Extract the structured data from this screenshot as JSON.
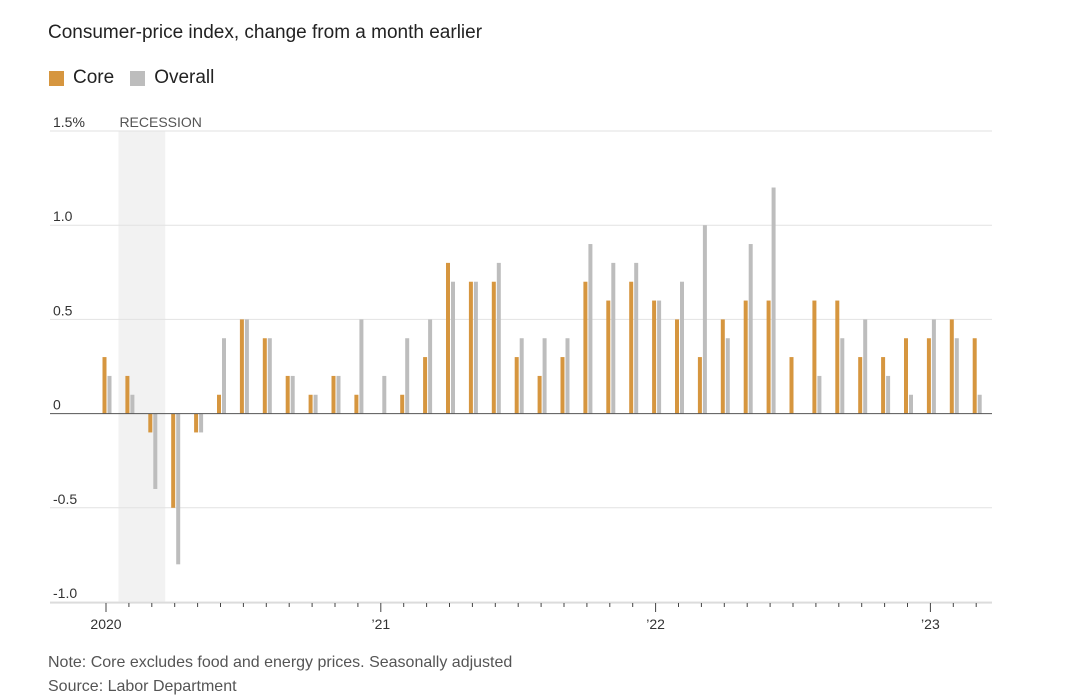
{
  "header": {
    "title": "Consumer-price index, change from a month earlier"
  },
  "legend": [
    {
      "label": "Core",
      "color": "#D6963F"
    },
    {
      "label": "Overall",
      "color": "#BDBDBD"
    }
  ],
  "notes": {
    "note": "Note: Core excludes food and energy prices. Seasonally adjusted",
    "source": "Source: Labor Department"
  },
  "chart_data": {
    "type": "bar",
    "title": "Consumer-price index, change from a month earlier",
    "xlabel": "",
    "ylabel": "",
    "ylim": [
      -1.0,
      1.5
    ],
    "y_ticks": [
      {
        "value": 1.5,
        "label": "1.5%"
      },
      {
        "value": 1.0,
        "label": "1.0"
      },
      {
        "value": 0.5,
        "label": "0.5"
      },
      {
        "value": 0,
        "label": "0"
      },
      {
        "value": -0.5,
        "label": "-0.5"
      },
      {
        "value": -1.0,
        "label": "-1.0"
      }
    ],
    "x_ticks": [
      {
        "month_index": 0,
        "label": "2020"
      },
      {
        "month_index": 12,
        "label": "’21"
      },
      {
        "month_index": 24,
        "label": "’22"
      },
      {
        "month_index": 36,
        "label": "’23"
      }
    ],
    "annotations": [
      {
        "type": "shaded_region",
        "label": "RECESSION",
        "start_month_index": 1,
        "end_month_index": 3
      }
    ],
    "grid": true,
    "legend_position": "top-left",
    "categories": [
      "Jan 2020",
      "Feb 2020",
      "Mar 2020",
      "Apr 2020",
      "May 2020",
      "Jun 2020",
      "Jul 2020",
      "Aug 2020",
      "Sep 2020",
      "Oct 2020",
      "Nov 2020",
      "Dec 2020",
      "Jan 2021",
      "Feb 2021",
      "Mar 2021",
      "Apr 2021",
      "May 2021",
      "Jun 2021",
      "Jul 2021",
      "Aug 2021",
      "Sep 2021",
      "Oct 2021",
      "Nov 2021",
      "Dec 2021",
      "Jan 2022",
      "Feb 2022",
      "Mar 2022",
      "Apr 2022",
      "May 2022",
      "Jun 2022",
      "Jul 2022",
      "Aug 2022",
      "Sep 2022",
      "Oct 2022",
      "Nov 2022",
      "Dec 2022",
      "Jan 2023",
      "Feb 2023",
      "Mar 2023"
    ],
    "series": [
      {
        "name": "Core",
        "color": "#D6963F",
        "values": [
          0.3,
          0.2,
          -0.1,
          -0.5,
          -0.1,
          0.1,
          0.5,
          0.4,
          0.2,
          0.1,
          0.2,
          0.1,
          0.0,
          0.1,
          0.3,
          0.8,
          0.7,
          0.7,
          0.3,
          0.2,
          0.3,
          0.7,
          0.6,
          0.7,
          0.6,
          0.5,
          0.3,
          0.5,
          0.6,
          0.6,
          0.3,
          0.6,
          0.6,
          0.3,
          0.3,
          0.4,
          0.4,
          0.5,
          0.4
        ]
      },
      {
        "name": "Overall",
        "color": "#BDBDBD",
        "values": [
          0.2,
          0.1,
          -0.4,
          -0.8,
          -0.1,
          0.4,
          0.5,
          0.4,
          0.2,
          0.1,
          0.2,
          0.5,
          0.2,
          0.4,
          0.5,
          0.7,
          0.7,
          0.8,
          0.4,
          0.4,
          0.4,
          0.9,
          0.8,
          0.8,
          0.6,
          0.7,
          1.0,
          0.4,
          0.9,
          1.2,
          0.0,
          0.2,
          0.4,
          0.5,
          0.2,
          0.1,
          0.5,
          0.4,
          0.1
        ]
      }
    ]
  }
}
